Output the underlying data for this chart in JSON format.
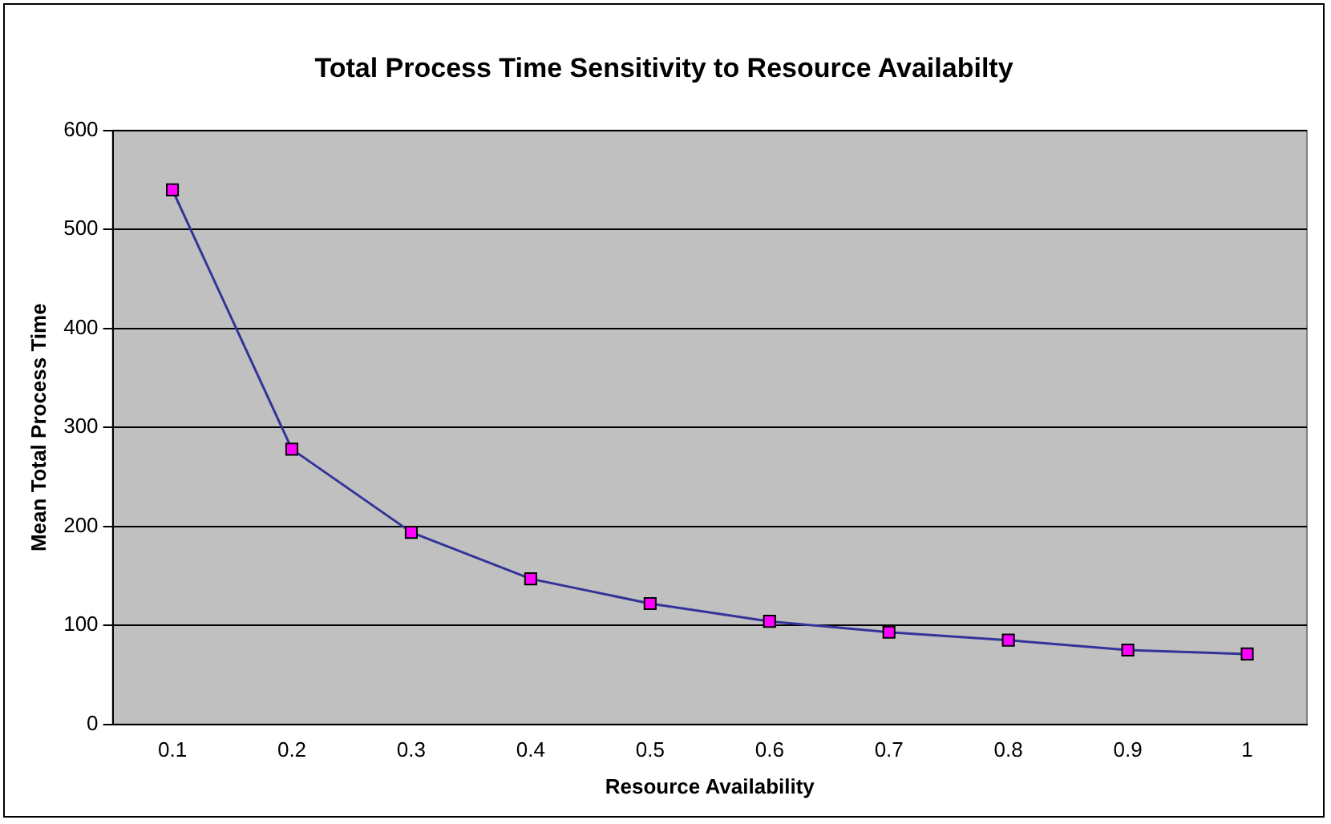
{
  "chart_data": {
    "type": "line",
    "title": "Total Process Time Sensitivity to Resource Availabilty",
    "xlabel": "Resource Availability",
    "ylabel": "Mean Total Process Time",
    "categories": [
      "0.1",
      "0.2",
      "0.3",
      "0.4",
      "0.5",
      "0.6",
      "0.7",
      "0.8",
      "0.9",
      "1"
    ],
    "series": [
      {
        "color": "#333399",
        "values": [
          540,
          278,
          194,
          147,
          122,
          104,
          93,
          85,
          75,
          71
        ]
      }
    ],
    "ylim": [
      0,
      600
    ],
    "yticks": [
      0,
      100,
      200,
      300,
      400,
      500,
      600
    ],
    "grid": "y",
    "legend": false,
    "marker": "square",
    "line_style": "solid"
  }
}
